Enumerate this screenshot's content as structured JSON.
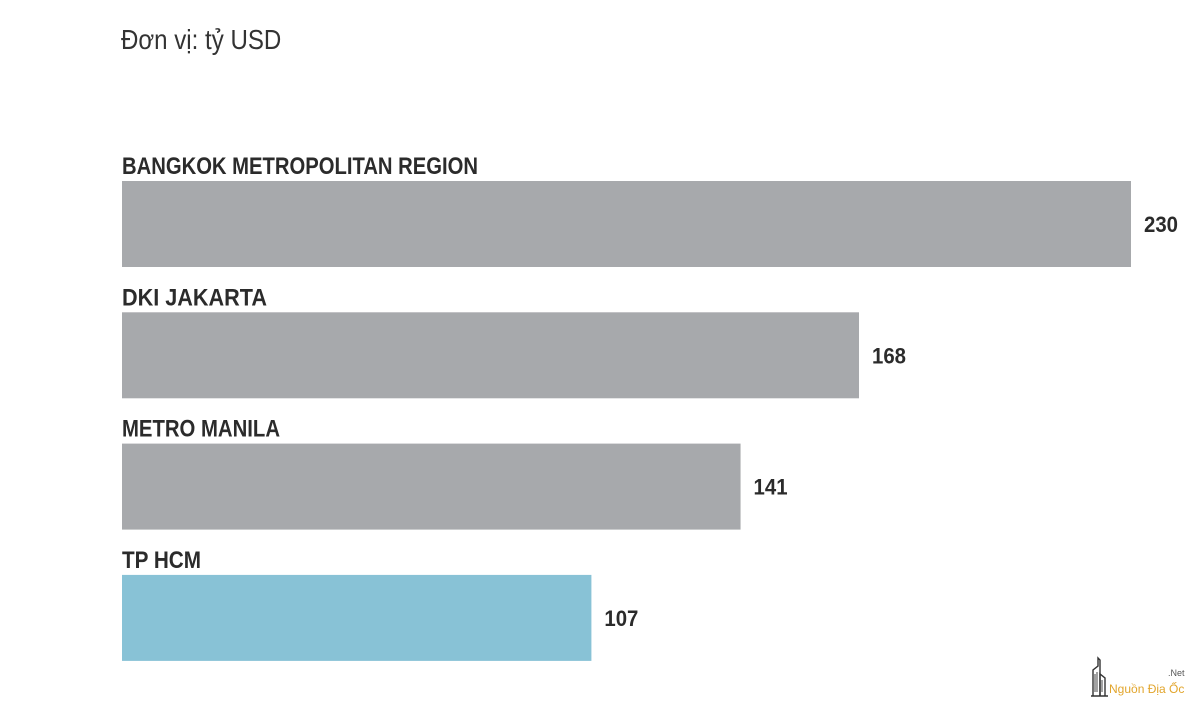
{
  "unit_label": "Đơn vị: tỷ USD",
  "chart_data": {
    "type": "bar",
    "orientation": "horizontal",
    "categories": [
      "BANGKOK METROPOLITAN REGION",
      "DKI JAKARTA",
      "METRO MANILA",
      "TP HCM"
    ],
    "values": [
      230,
      168,
      141,
      107
    ],
    "value_labels": [
      "230",
      "168",
      "141",
      "107"
    ],
    "colors": [
      "#a7a9ac",
      "#a7a9ac",
      "#a7a9ac",
      "#88c2d6"
    ],
    "title": "",
    "xlabel": "",
    "ylabel": "",
    "xlim": [
      0,
      230
    ],
    "grid": false,
    "legend": "none"
  },
  "watermark": {
    "name": "Nguồn Địa Ốc",
    "suffix": ".Net",
    "icon": "building-logo-icon",
    "color": "#e2a52c"
  }
}
